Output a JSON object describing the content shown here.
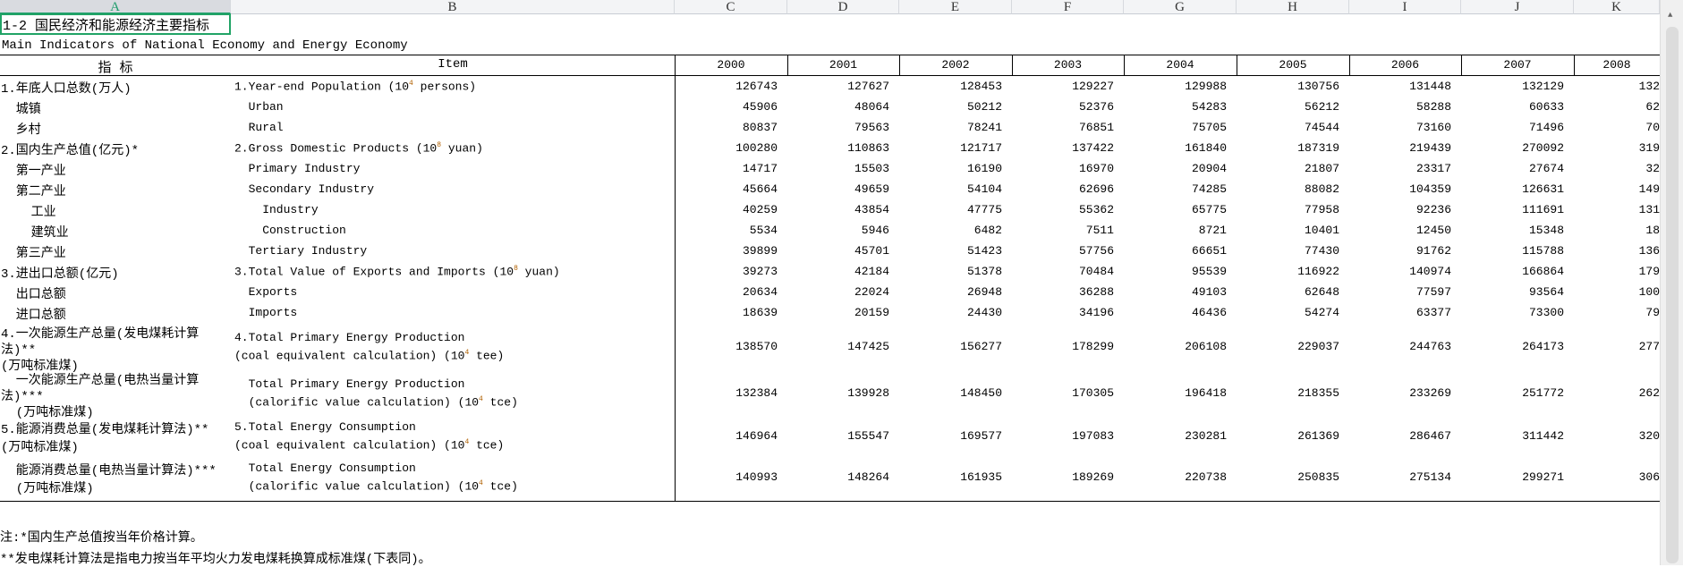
{
  "columns": [
    "A",
    "B",
    "C",
    "D",
    "E",
    "F",
    "G",
    "H",
    "I",
    "J",
    "K"
  ],
  "title_cn": "1-2  国民经济和能源经济主要指标",
  "title_en": "Main Indicators of National Economy and Energy Economy",
  "header": {
    "cn": "指  标",
    "en": "Item",
    "years": [
      "2000",
      "2001",
      "2002",
      "2003",
      "2004",
      "2005",
      "2006",
      "2007",
      "2008"
    ]
  },
  "rows": [
    {
      "cn": [
        "1.年底人口总数(万人)"
      ],
      "en": [
        "1.Year-end Population (10|4| persons)"
      ],
      "values": [
        "126743",
        "127627",
        "128453",
        "129227",
        "129988",
        "130756",
        "131448",
        "132129",
        "132"
      ]
    },
    {
      "cn": [
        "  城镇"
      ],
      "en": [
        "  Urban"
      ],
      "values": [
        "45906",
        "48064",
        "50212",
        "52376",
        "54283",
        "56212",
        "58288",
        "60633",
        "62"
      ]
    },
    {
      "cn": [
        "  乡村"
      ],
      "en": [
        "  Rural"
      ],
      "values": [
        "80837",
        "79563",
        "78241",
        "76851",
        "75705",
        "74544",
        "73160",
        "71496",
        "70"
      ]
    },
    {
      "cn": [
        "2.国内生产总值(亿元)*"
      ],
      "en": [
        "2.Gross Domestic Products (10|8| yuan)"
      ],
      "values": [
        "100280",
        "110863",
        "121717",
        "137422",
        "161840",
        "187319",
        "219439",
        "270092",
        "319"
      ]
    },
    {
      "cn": [
        "  第一产业"
      ],
      "en": [
        "  Primary Industry"
      ],
      "values": [
        "14717",
        "15503",
        "16190",
        "16970",
        "20904",
        "21807",
        "23317",
        "27674",
        "32"
      ]
    },
    {
      "cn": [
        "  第二产业"
      ],
      "en": [
        "  Secondary Industry"
      ],
      "values": [
        "45664",
        "49659",
        "54104",
        "62696",
        "74285",
        "88082",
        "104359",
        "126631",
        "149"
      ]
    },
    {
      "cn": [
        "    工业"
      ],
      "en": [
        "    Industry"
      ],
      "values": [
        "40259",
        "43854",
        "47775",
        "55362",
        "65775",
        "77958",
        "92236",
        "111691",
        "131"
      ]
    },
    {
      "cn": [
        "    建筑业"
      ],
      "en": [
        "    Construction"
      ],
      "values": [
        "5534",
        "5946",
        "6482",
        "7511",
        "8721",
        "10401",
        "12450",
        "15348",
        "18"
      ]
    },
    {
      "cn": [
        "  第三产业"
      ],
      "en": [
        "  Tertiary Industry"
      ],
      "values": [
        "39899",
        "45701",
        "51423",
        "57756",
        "66651",
        "77430",
        "91762",
        "115788",
        "136"
      ]
    },
    {
      "cn": [
        "3.进出口总额(亿元)"
      ],
      "en": [
        "3.Total Value of Exports and Imports (10|8| yuan)"
      ],
      "values": [
        "39273",
        "42184",
        "51378",
        "70484",
        "95539",
        "116922",
        "140974",
        "166864",
        "179"
      ]
    },
    {
      "cn": [
        "  出口总额"
      ],
      "en": [
        "  Exports"
      ],
      "values": [
        "20634",
        "22024",
        "26948",
        "36288",
        "49103",
        "62648",
        "77597",
        "93564",
        "100"
      ]
    },
    {
      "cn": [
        "  进口总额"
      ],
      "en": [
        "  Imports"
      ],
      "values": [
        "18639",
        "20159",
        "24430",
        "34196",
        "46436",
        "54274",
        "63377",
        "73300",
        "79"
      ]
    },
    {
      "cn": [
        "4.一次能源生产总量(发电煤耗计算",
        "法)**",
        "(万吨标准煤)"
      ],
      "en": [
        "4.Total Primary Energy Production",
        "(coal equivalent calculation) (10|4| tee)"
      ],
      "values": [
        "138570",
        "147425",
        "156277",
        "178299",
        "206108",
        "229037",
        "244763",
        "264173",
        "277"
      ]
    },
    {
      "cn": [
        "  一次能源生产总量(电热当量计算",
        "法)***",
        "  (万吨标准煤)"
      ],
      "en": [
        "  Total Primary Energy Production",
        "  (calorific value calculation) (10|4| tce)"
      ],
      "values": [
        "132384",
        "139928",
        "148450",
        "170305",
        "196418",
        "218355",
        "233269",
        "251772",
        "262"
      ]
    },
    {
      "cn": [
        "5.能源消费总量(发电煤耗计算法)**",
        "(万吨标准煤)"
      ],
      "en": [
        "5.Total Energy Consumption",
        "(coal equivalent calculation) (10|4| tce)"
      ],
      "values": [
        "146964",
        "155547",
        "169577",
        "197083",
        "230281",
        "261369",
        "286467",
        "311442",
        "320"
      ]
    },
    {
      "cn": [
        "  能源消费总量(电热当量计算法)***",
        "  (万吨标准煤)"
      ],
      "en": [
        "  Total Energy Consumption",
        "  (calorific value calculation) (10|4| tce)"
      ],
      "values": [
        "140993",
        "148264",
        "161935",
        "189269",
        "220738",
        "250835",
        "275134",
        "299271",
        "306"
      ]
    }
  ],
  "notes": [
    "注:*国内生产总值按当年价格计算。",
    "**发电煤耗计算法是指电力按当年平均火力发电煤耗换算成标准煤(下表同)。"
  ],
  "colors": {
    "selection": "#21a366",
    "grid_header": "#f3f4f6"
  }
}
